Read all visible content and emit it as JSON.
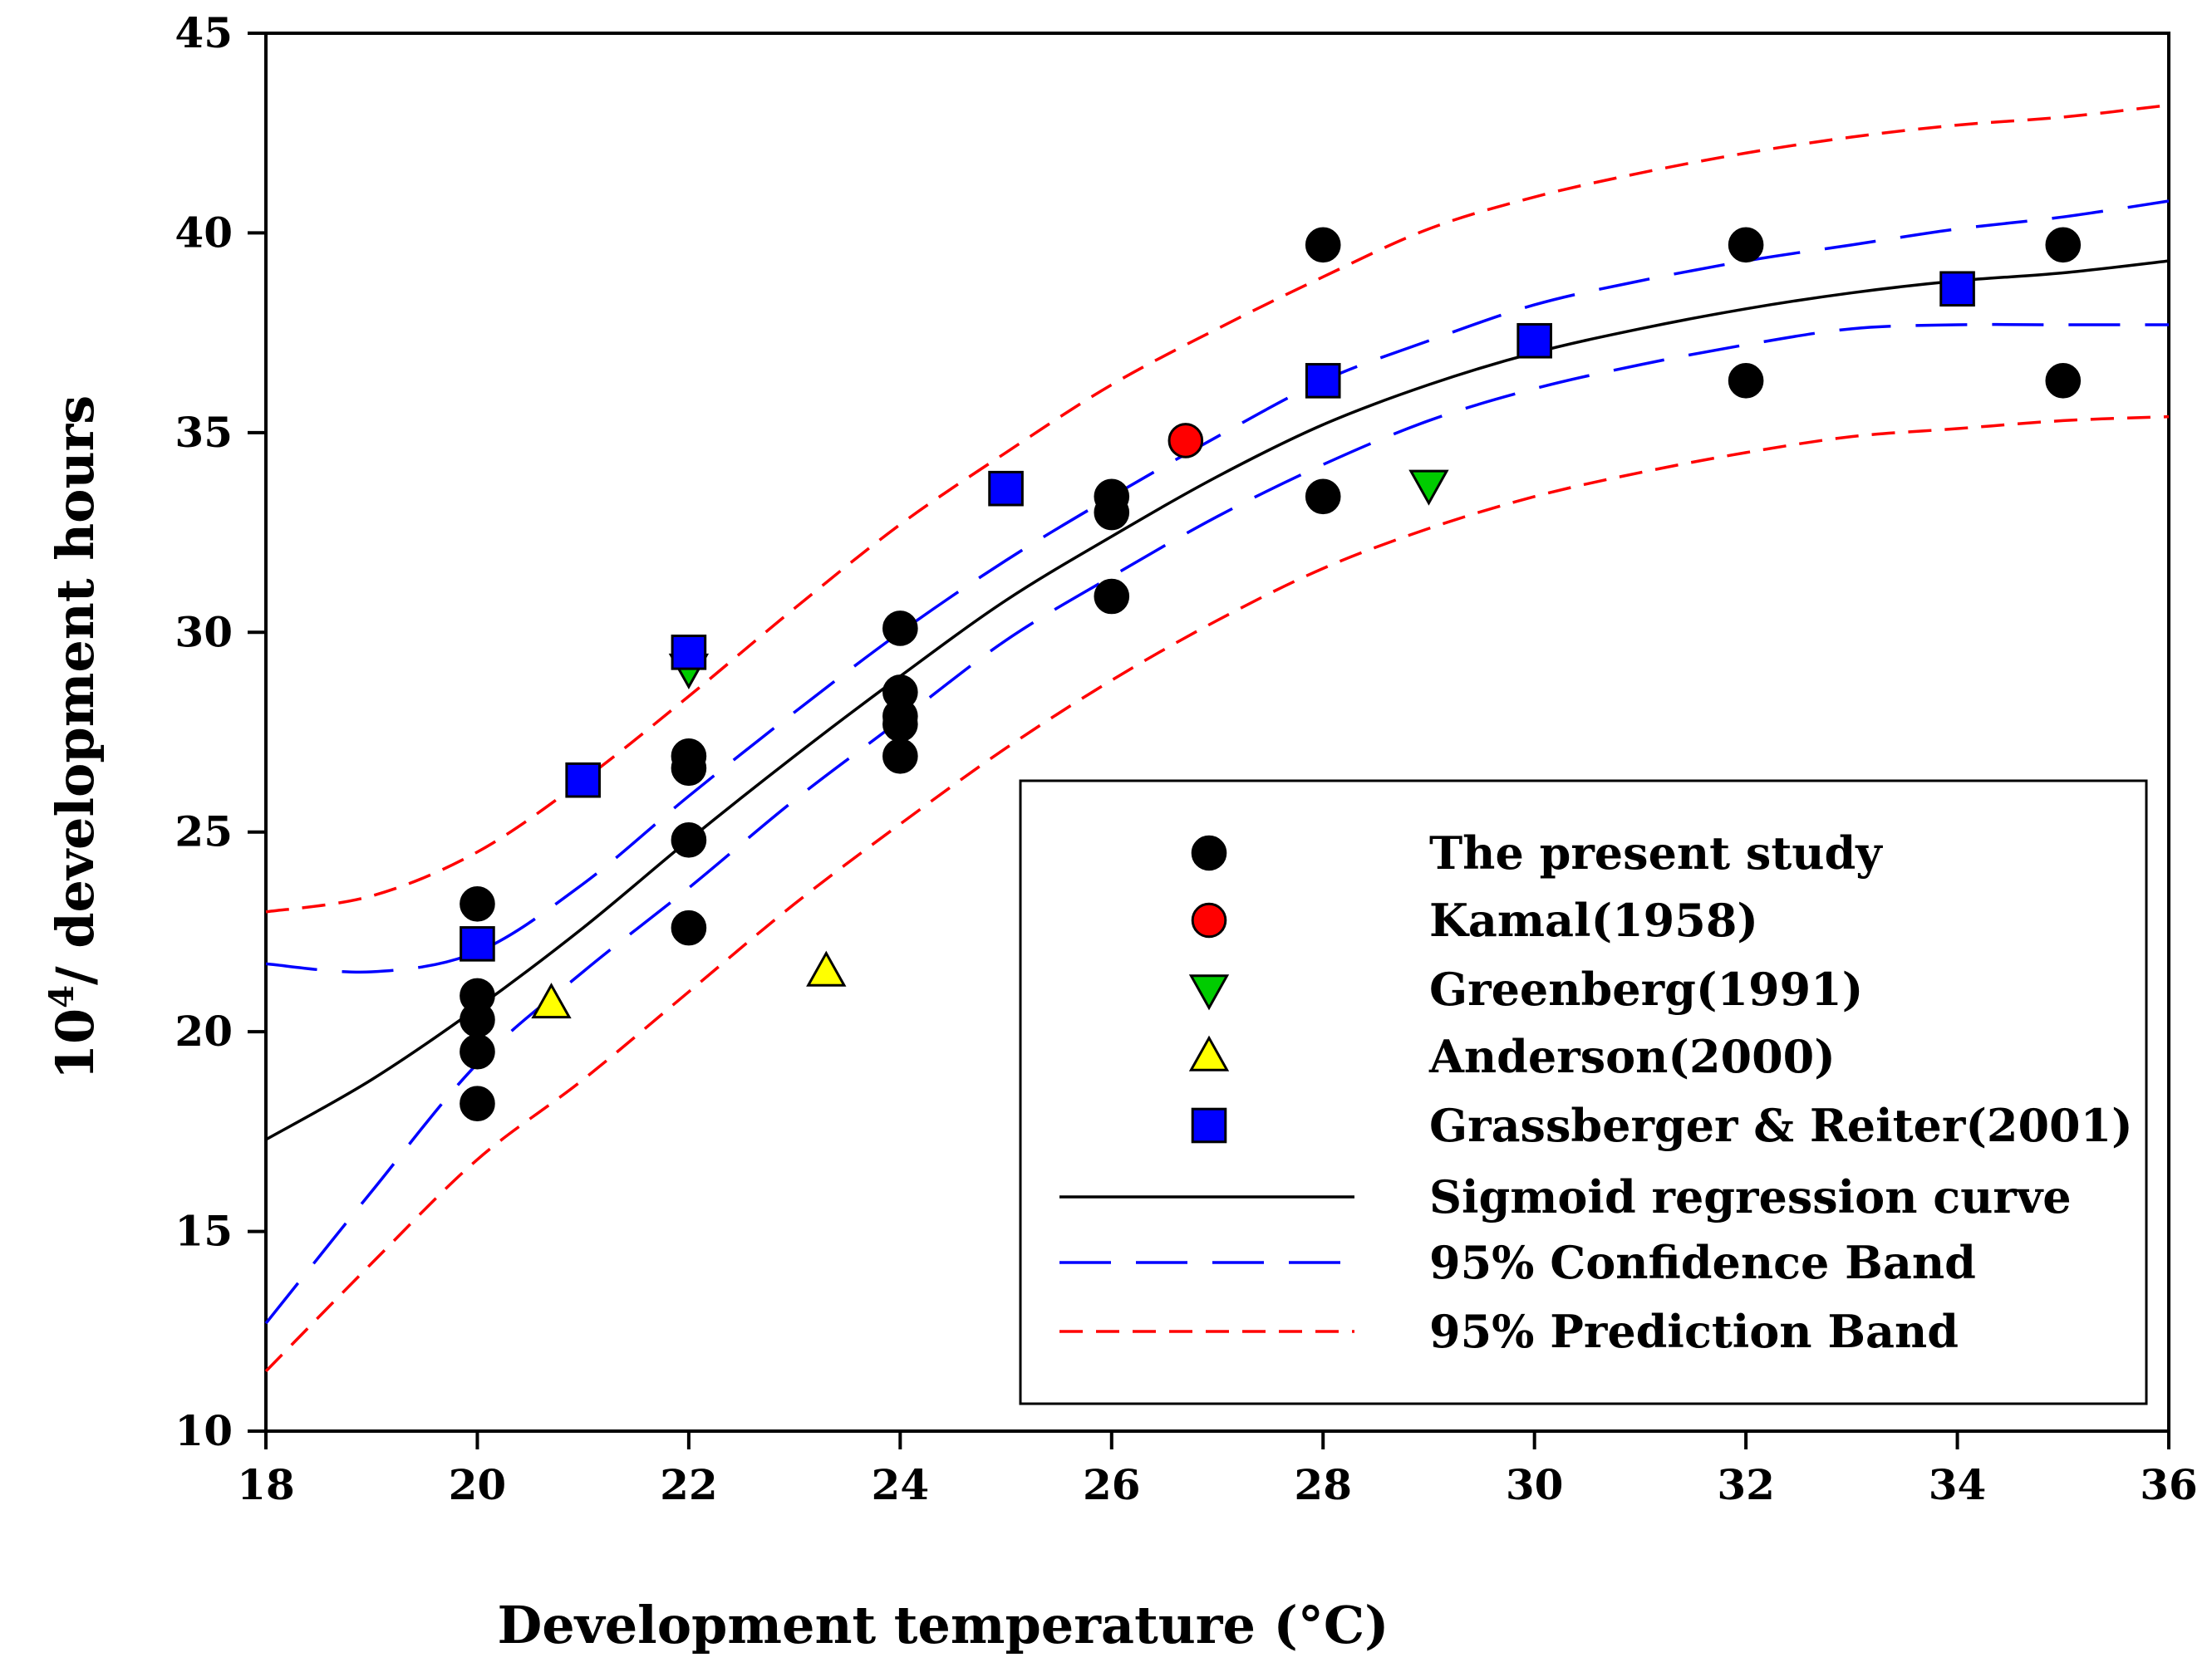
{
  "chart_data": {
    "type": "scatter",
    "xlabel": "Development temperature (°C)",
    "ylabel_base": "10",
    "ylabel_exp": "4",
    "ylabel_rest": "/ development hours",
    "xlim": [
      18,
      36
    ],
    "ylim": [
      10,
      45
    ],
    "xticks": [
      "18",
      "20",
      "22",
      "24",
      "26",
      "28",
      "30",
      "32",
      "34",
      "36"
    ],
    "yticks": [
      "10",
      "15",
      "20",
      "25",
      "30",
      "35",
      "40",
      "45"
    ],
    "legend_position": "bottom-right",
    "series": [
      {
        "name": "The present study",
        "marker": "circle",
        "color": "#000000",
        "points": [
          [
            20,
            23.2
          ],
          [
            20,
            20.9
          ],
          [
            20,
            20.3
          ],
          [
            20,
            19.5
          ],
          [
            20,
            18.2
          ],
          [
            22,
            26.9
          ],
          [
            22,
            26.6
          ],
          [
            22,
            24.8
          ],
          [
            22,
            22.6
          ],
          [
            24,
            30.1
          ],
          [
            24,
            28.5
          ],
          [
            24,
            27.9
          ],
          [
            24,
            27.7
          ],
          [
            24,
            26.9
          ],
          [
            26,
            33.4
          ],
          [
            26,
            33.0
          ],
          [
            26,
            30.9
          ],
          [
            28,
            39.7
          ],
          [
            28,
            33.4
          ],
          [
            32,
            39.7
          ],
          [
            32,
            36.3
          ],
          [
            35,
            39.7
          ],
          [
            35,
            36.3
          ]
        ]
      },
      {
        "name": "Kamal(1958)",
        "marker": "circle",
        "color": "#ff0000",
        "points": [
          [
            26.7,
            34.8
          ]
        ]
      },
      {
        "name": "Greenberg(1991)",
        "marker": "triangle-down",
        "color": "#00cc00",
        "points": [
          [
            22,
            29.1
          ],
          [
            29,
            33.7
          ]
        ]
      },
      {
        "name": "Anderson(2000)",
        "marker": "triangle-up",
        "color": "#ffff00",
        "points": [
          [
            20.7,
            20.7
          ],
          [
            23.3,
            21.5
          ]
        ]
      },
      {
        "name": "Grassberger & Reiter(2001)",
        "marker": "square",
        "color": "#0000ff",
        "points": [
          [
            20,
            22.2
          ],
          [
            21,
            26.3
          ],
          [
            22,
            29.5
          ],
          [
            25,
            33.6
          ],
          [
            28,
            36.3
          ],
          [
            30,
            37.3
          ],
          [
            34,
            38.6
          ]
        ]
      }
    ],
    "curves": [
      {
        "name": "Sigmoid regression curve",
        "style": "solid",
        "color": "#000000",
        "points": [
          [
            18,
            17.3
          ],
          [
            19,
            18.8
          ],
          [
            20,
            20.6
          ],
          [
            21,
            22.6
          ],
          [
            22,
            24.8
          ],
          [
            23,
            26.9
          ],
          [
            24,
            28.9
          ],
          [
            25,
            30.8
          ],
          [
            26,
            32.4
          ],
          [
            27,
            33.9
          ],
          [
            28,
            35.2
          ],
          [
            29,
            36.2
          ],
          [
            30,
            37.0
          ],
          [
            31,
            37.6
          ],
          [
            32,
            38.1
          ],
          [
            33,
            38.5
          ],
          [
            34,
            38.8
          ],
          [
            35,
            39.0
          ],
          [
            36,
            39.3
          ]
        ]
      },
      {
        "name": "95% Confidence Band",
        "style": "long-dash",
        "color": "#0000ff",
        "upper": [
          [
            18,
            21.7
          ],
          [
            19,
            21.5
          ],
          [
            20,
            22.0
          ],
          [
            21,
            23.7
          ],
          [
            22,
            25.9
          ],
          [
            23,
            28.0
          ],
          [
            24,
            30.0
          ],
          [
            25,
            31.8
          ],
          [
            26,
            33.4
          ],
          [
            27,
            34.9
          ],
          [
            28,
            36.3
          ],
          [
            29,
            37.3
          ],
          [
            30,
            38.2
          ],
          [
            31,
            38.8
          ],
          [
            32,
            39.3
          ],
          [
            33,
            39.7
          ],
          [
            34,
            40.1
          ],
          [
            35,
            40.4
          ],
          [
            36,
            40.8
          ]
        ],
        "lower": [
          [
            18,
            12.7
          ],
          [
            19,
            16.0
          ],
          [
            20,
            19.2
          ],
          [
            21,
            21.5
          ],
          [
            22,
            23.6
          ],
          [
            23,
            25.8
          ],
          [
            24,
            27.8
          ],
          [
            25,
            29.8
          ],
          [
            26,
            31.4
          ],
          [
            27,
            32.9
          ],
          [
            28,
            34.2
          ],
          [
            29,
            35.3
          ],
          [
            30,
            36.1
          ],
          [
            31,
            36.7
          ],
          [
            32,
            37.2
          ],
          [
            33,
            37.6
          ],
          [
            34,
            37.7
          ],
          [
            35,
            37.7
          ],
          [
            36,
            37.7
          ]
        ]
      },
      {
        "name": "95% Prediction Band",
        "style": "short-dash",
        "color": "#ff0000",
        "upper": [
          [
            18,
            23.0
          ],
          [
            19,
            23.4
          ],
          [
            20,
            24.5
          ],
          [
            21,
            26.3
          ],
          [
            22,
            28.4
          ],
          [
            23,
            30.6
          ],
          [
            24,
            32.7
          ],
          [
            25,
            34.5
          ],
          [
            26,
            36.2
          ],
          [
            27,
            37.6
          ],
          [
            28,
            38.9
          ],
          [
            29,
            40.1
          ],
          [
            30,
            40.9
          ],
          [
            31,
            41.5
          ],
          [
            32,
            42.0
          ],
          [
            33,
            42.4
          ],
          [
            34,
            42.7
          ],
          [
            35,
            42.9
          ],
          [
            36,
            43.2
          ]
        ],
        "lower": [
          [
            18,
            11.5
          ],
          [
            19,
            14.2
          ],
          [
            20,
            16.8
          ],
          [
            21,
            18.8
          ],
          [
            22,
            21.0
          ],
          [
            23,
            23.2
          ],
          [
            24,
            25.2
          ],
          [
            25,
            27.1
          ],
          [
            26,
            28.8
          ],
          [
            27,
            30.3
          ],
          [
            28,
            31.6
          ],
          [
            29,
            32.6
          ],
          [
            30,
            33.4
          ],
          [
            31,
            34.0
          ],
          [
            32,
            34.5
          ],
          [
            33,
            34.9
          ],
          [
            34,
            35.1
          ],
          [
            35,
            35.3
          ],
          [
            36,
            35.4
          ]
        ]
      }
    ]
  }
}
